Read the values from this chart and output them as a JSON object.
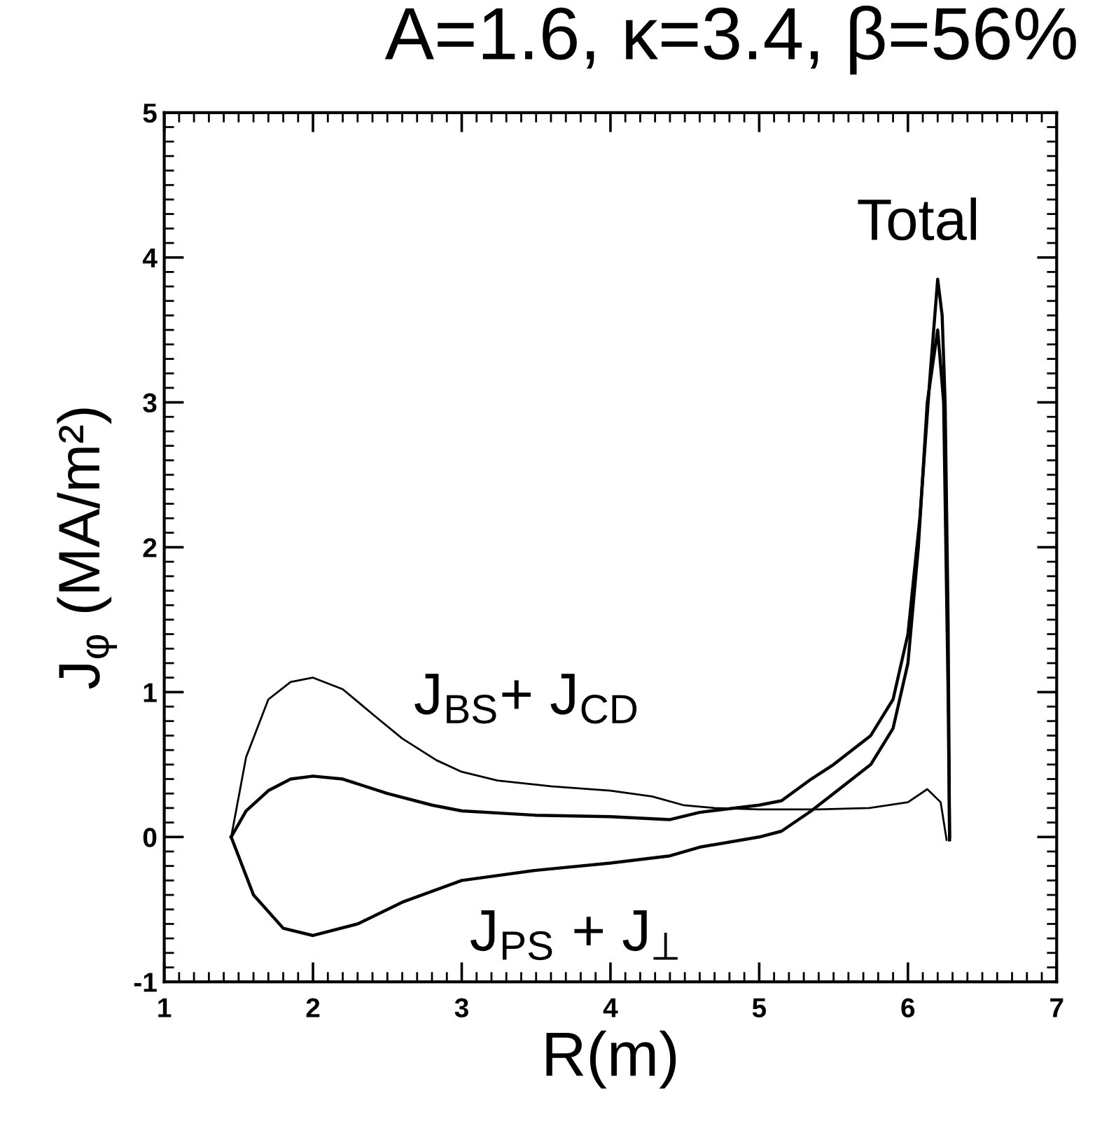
{
  "chart_data": {
    "type": "line",
    "title": "A=1.6, κ=3.4, β=56%",
    "xlabel": "R(m)",
    "ylabel": "J$_{φ}$ (MA/m²)",
    "xlim": [
      1,
      7
    ],
    "ylim": [
      -1,
      5
    ],
    "xticks": [
      1,
      2,
      3,
      4,
      5,
      6,
      7
    ],
    "yticks": [
      -1,
      0,
      1,
      2,
      3,
      4,
      5
    ],
    "grid": false,
    "marker": "none",
    "line_style": "solid",
    "series": [
      {
        "name": "J$_{BS}$+ J$_{CD}$",
        "color": "#000000",
        "x": [
          1.45,
          1.55,
          1.7,
          1.85,
          2.0,
          2.2,
          2.41,
          2.6,
          2.83,
          3.0,
          3.24,
          3.6,
          4.0,
          4.28,
          4.49,
          4.7,
          5.0,
          5.4,
          5.74,
          6.0,
          6.13,
          6.22,
          6.26
        ],
        "values": [
          0,
          0.55,
          0.95,
          1.07,
          1.1,
          1.02,
          0.84,
          0.68,
          0.53,
          0.45,
          0.39,
          0.35,
          0.32,
          0.28,
          0.22,
          0.2,
          0.19,
          0.19,
          0.2,
          0.24,
          0.33,
          0.24,
          -0.02
        ]
      },
      {
        "name": "Total",
        "color": "#000000",
        "x": [
          1.45,
          1.55,
          1.7,
          1.85,
          2.0,
          2.2,
          2.5,
          2.8,
          3.0,
          3.5,
          4.0,
          4.4,
          4.6,
          5.0,
          5.15,
          5.35,
          5.5,
          5.75,
          5.9,
          6.0,
          6.08,
          6.15,
          6.2,
          6.23,
          6.25,
          6.27,
          6.28
        ],
        "values": [
          0,
          0.18,
          0.32,
          0.4,
          0.42,
          0.4,
          0.3,
          0.22,
          0.18,
          0.15,
          0.14,
          0.12,
          0.17,
          0.22,
          0.25,
          0.4,
          0.5,
          0.7,
          0.95,
          1.4,
          2.2,
          3.2,
          3.85,
          3.6,
          3.0,
          1.5,
          0
        ]
      },
      {
        "name": "J$_{PS}$ + J$_{⊥}$",
        "color": "#000000",
        "x": [
          1.45,
          1.6,
          1.8,
          2.0,
          2.3,
          2.6,
          3.0,
          3.5,
          4.0,
          4.4,
          4.6,
          5.0,
          5.15,
          5.35,
          5.5,
          5.75,
          5.9,
          6.0,
          6.07,
          6.13,
          6.2,
          6.24,
          6.27,
          6.28
        ],
        "values": [
          0,
          -0.4,
          -0.63,
          -0.68,
          -0.6,
          -0.45,
          -0.3,
          -0.23,
          -0.18,
          -0.13,
          -0.07,
          0.0,
          0.04,
          0.18,
          0.3,
          0.5,
          0.75,
          1.2,
          2.0,
          3.0,
          3.5,
          3.0,
          1.0,
          -0.02
        ]
      }
    ]
  }
}
